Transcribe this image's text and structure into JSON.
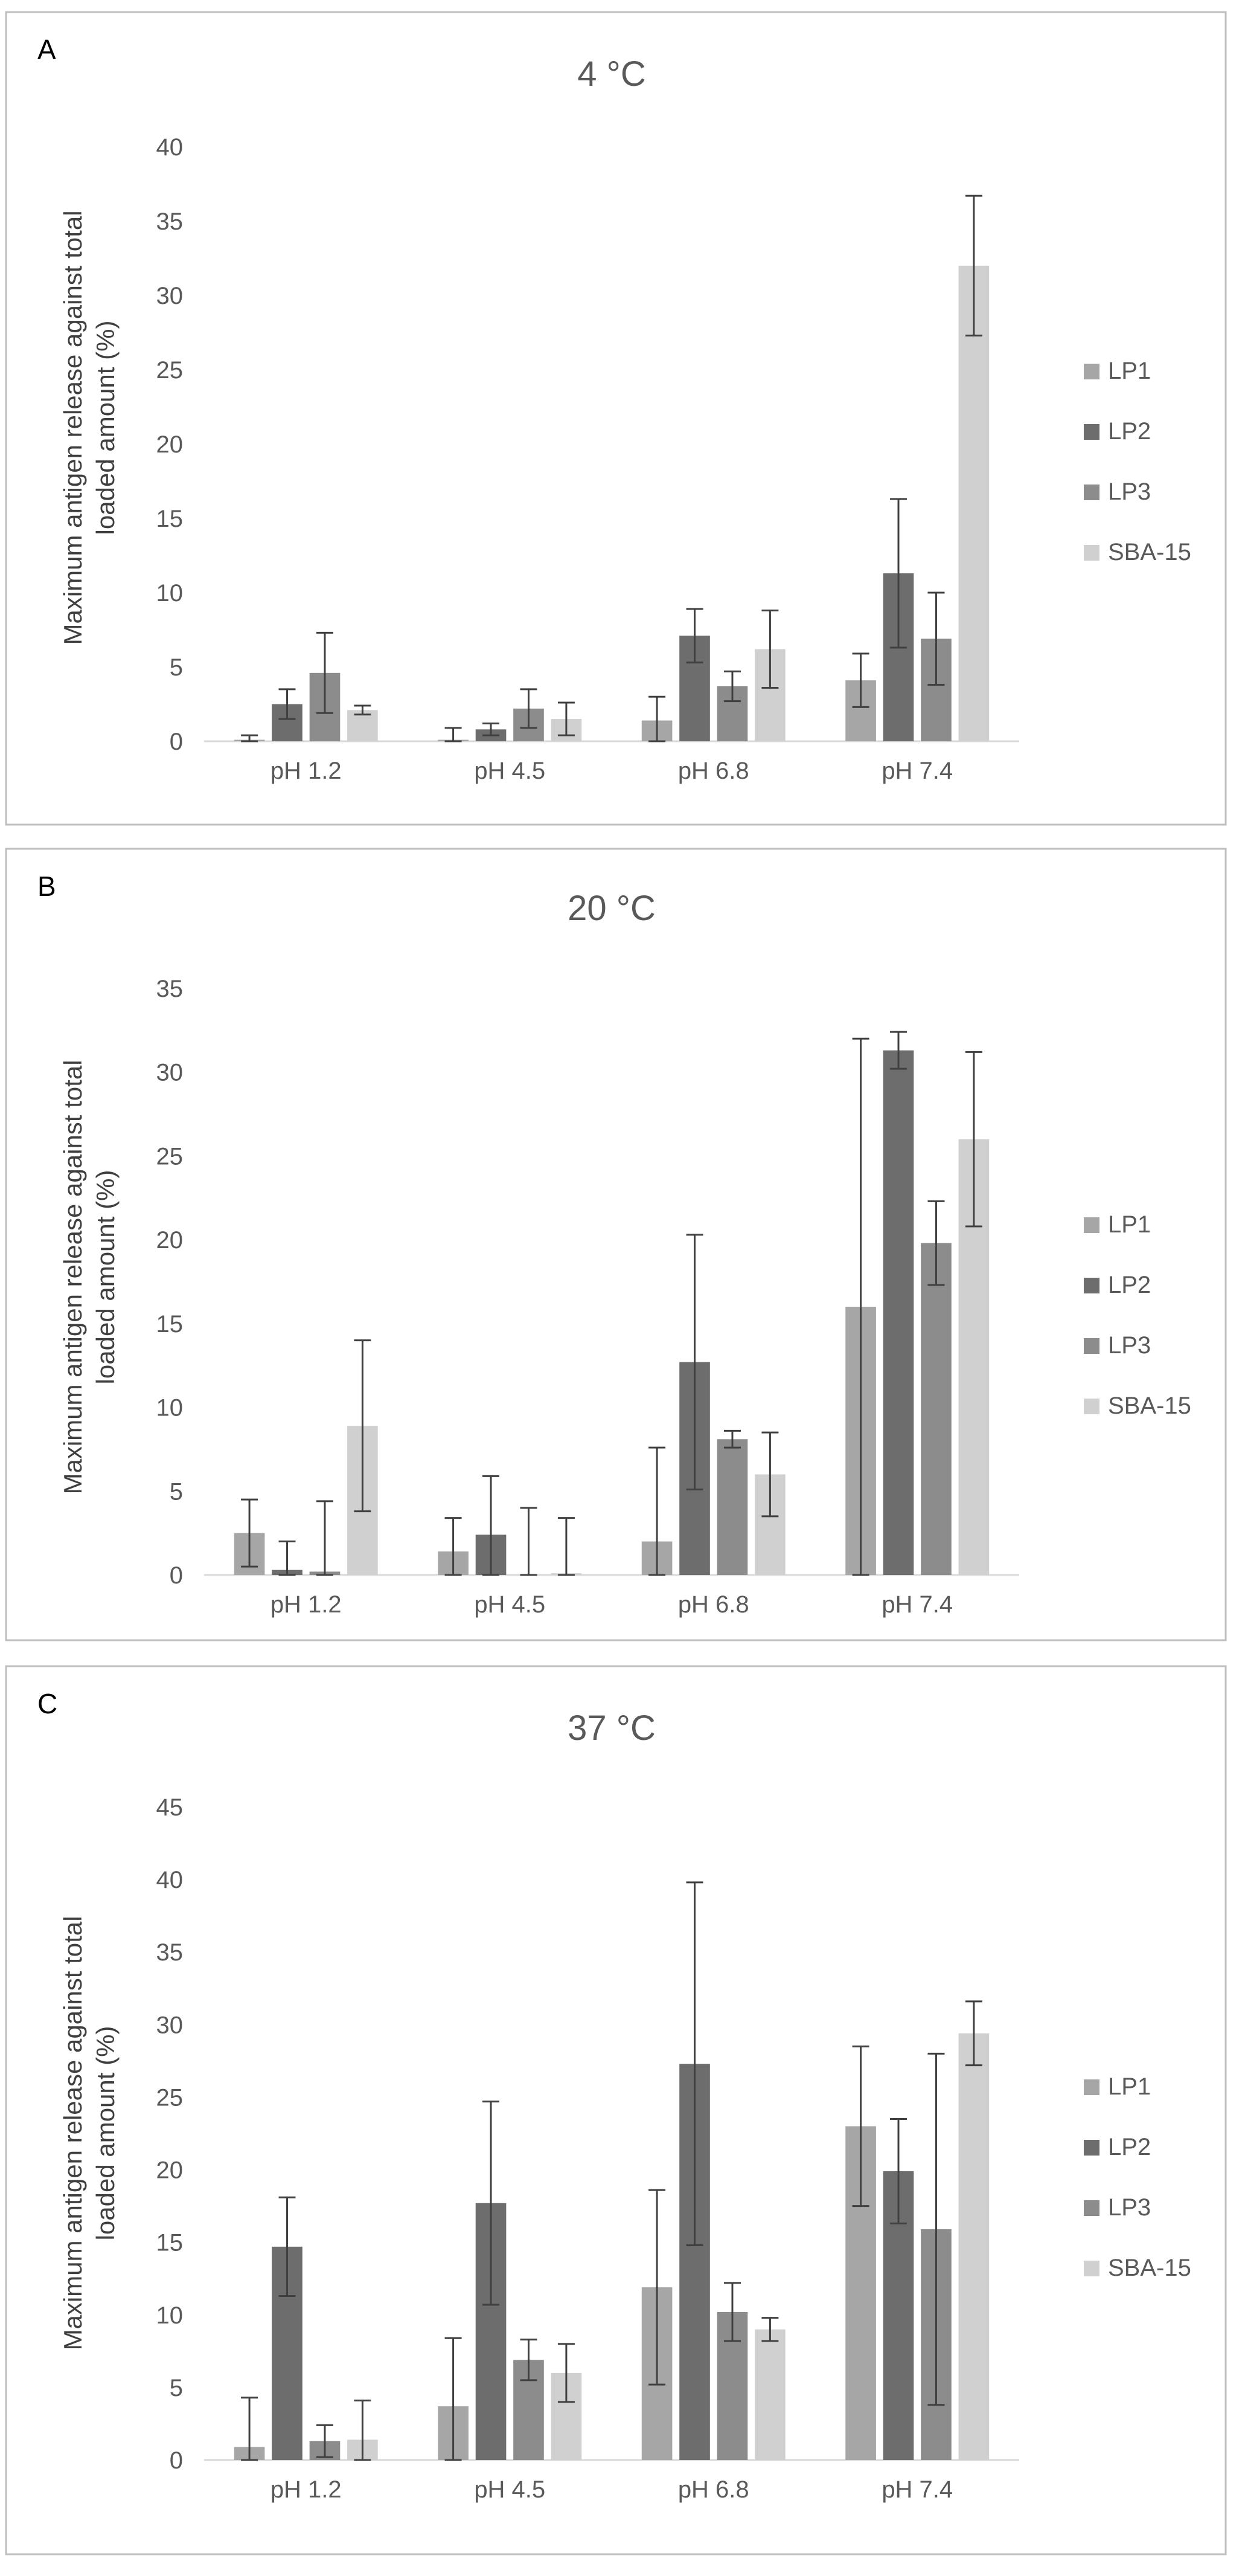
{
  "chart_data": [
    {
      "type": "bar",
      "panel_label": "A",
      "title": "4 °C",
      "ylabel_lines": [
        "Maximum antigen release against total",
        "loaded amount (%)"
      ],
      "categories": [
        "pH 1.2",
        "pH 4.5",
        "pH 6.8",
        "pH 7.4"
      ],
      "ylim": [
        0,
        40
      ],
      "yticks": [
        0,
        5,
        10,
        15,
        20,
        25,
        30,
        35,
        40
      ],
      "grid": false,
      "legend_position": "right",
      "series": [
        {
          "name": "LP1",
          "color": "#a6a6a6",
          "values": [
            0.1,
            0.1,
            1.4,
            4.1
          ],
          "errors": [
            0.3,
            0.8,
            1.6,
            1.8
          ]
        },
        {
          "name": "LP2",
          "color": "#6d6d6d",
          "values": [
            2.5,
            0.8,
            7.1,
            11.3
          ],
          "errors": [
            1.0,
            0.4,
            1.8,
            5.0
          ]
        },
        {
          "name": "LP3",
          "color": "#8c8c8c",
          "values": [
            4.6,
            2.2,
            3.7,
            6.9
          ],
          "errors": [
            2.7,
            1.3,
            1.0,
            3.1
          ]
        },
        {
          "name": "SBA-15",
          "color": "#d0d0d0",
          "values": [
            2.1,
            1.5,
            6.2,
            32.0
          ],
          "errors": [
            0.3,
            1.1,
            2.6,
            4.7
          ]
        }
      ]
    },
    {
      "type": "bar",
      "panel_label": "B",
      "title": "20 °C",
      "ylabel_lines": [
        "Maximum antigen release against total",
        "loaded amount (%)"
      ],
      "categories": [
        "pH 1.2",
        "pH 4.5",
        "pH 6.8",
        "pH 7.4"
      ],
      "ylim": [
        0,
        35
      ],
      "yticks": [
        0,
        5,
        10,
        15,
        20,
        25,
        30,
        35
      ],
      "grid": false,
      "legend_position": "right",
      "series": [
        {
          "name": "LP1",
          "color": "#a6a6a6",
          "values": [
            2.5,
            1.4,
            2.0,
            16.0
          ],
          "errors": [
            2.0,
            2.0,
            5.6,
            16.0
          ]
        },
        {
          "name": "LP2",
          "color": "#6d6d6d",
          "values": [
            0.3,
            2.4,
            12.7,
            31.3
          ],
          "errors": [
            1.7,
            3.5,
            7.6,
            1.1
          ]
        },
        {
          "name": "LP3",
          "color": "#8c8c8c",
          "values": [
            0.2,
            0.0,
            8.1,
            19.8
          ],
          "errors": [
            4.2,
            4.0,
            0.5,
            2.5
          ]
        },
        {
          "name": "SBA-15",
          "color": "#d0d0d0",
          "values": [
            8.9,
            0.1,
            6.0,
            26.0
          ],
          "errors": [
            5.1,
            3.3,
            2.5,
            5.2
          ]
        }
      ]
    },
    {
      "type": "bar",
      "panel_label": "C",
      "title": "37 °C",
      "ylabel_lines": [
        "Maximum antigen release against total",
        "loaded amount (%)"
      ],
      "categories": [
        "pH 1.2",
        "pH 4.5",
        "pH 6.8",
        "pH 7.4"
      ],
      "ylim": [
        0,
        45
      ],
      "yticks": [
        0,
        5,
        10,
        15,
        20,
        25,
        30,
        35,
        40,
        45
      ],
      "grid": false,
      "legend_position": "right",
      "series": [
        {
          "name": "LP1",
          "color": "#a6a6a6",
          "values": [
            0.9,
            3.7,
            11.9,
            23.0
          ],
          "errors": [
            3.4,
            4.7,
            6.7,
            5.5
          ]
        },
        {
          "name": "LP2",
          "color": "#6d6d6d",
          "values": [
            14.7,
            17.7,
            27.3,
            19.9
          ],
          "errors": [
            3.4,
            7.0,
            12.5,
            3.6
          ]
        },
        {
          "name": "LP3",
          "color": "#8c8c8c",
          "values": [
            1.3,
            6.9,
            10.2,
            15.9
          ],
          "errors": [
            1.1,
            1.4,
            2.0,
            12.1
          ]
        },
        {
          "name": "SBA-15",
          "color": "#d0d0d0",
          "values": [
            1.4,
            6.0,
            9.0,
            29.4
          ],
          "errors": [
            2.7,
            2.0,
            0.8,
            2.2
          ]
        }
      ]
    }
  ]
}
